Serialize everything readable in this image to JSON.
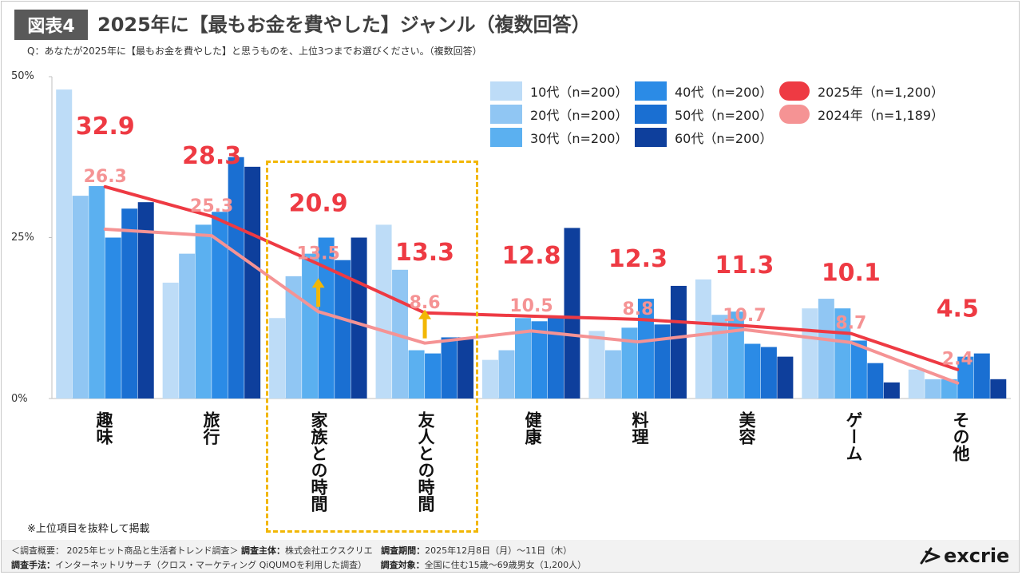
{
  "figure_label": "図表4",
  "title": "2025年に【最もお金を費やした】ジャンル（複数回答）",
  "question": "Q：あなたが2025年に【最もお金を費やした】と思うものを、上位3つまでお選びください。（複数回答）",
  "footnote": "※上位項目を抜粋して掲載",
  "footer": {
    "line1_a": "＜調査概要： 2025年ヒット商品と生活者トレンド調査＞",
    "line1_b_label": "調査主体：",
    "line1_b_value": "株式会社エクスクリエ",
    "line1_c_label": "調査期間：",
    "line1_c_value": "2025年12月8日（月）〜11日（木）",
    "line2_a_label": "調査手法：",
    "line2_a_value": "インターネットリサーチ（クロス・マーケティング QiQUMOを利用した調査）",
    "line2_b_label": "調査対象：",
    "line2_b_value": "全国に住む15歳〜69歳男女（1,200人）"
  },
  "logo_text": "excrie",
  "colors": {
    "age10": "#bddcf7",
    "age20": "#90c6f3",
    "age30": "#5bb0f0",
    "age40": "#2b8be6",
    "age50": "#1a6fd2",
    "age60": "#0e3f9c",
    "y2025": "#ee3a43",
    "y2024": "#f59394",
    "highlight": "#f2b705",
    "arrow": "#f2b705"
  },
  "chart_data": {
    "type": "bar",
    "categories": [
      "趣味",
      "旅行",
      "家族との時間",
      "友人との時間",
      "健康",
      "料理",
      "美容",
      "ゲーム",
      "その他"
    ],
    "ylim": [
      0,
      50
    ],
    "yticks": [
      "50%",
      "25%",
      "0%"
    ],
    "series": [
      {
        "name": "10代（n=200）",
        "type": "bar",
        "values": [
          48,
          18,
          12.5,
          27,
          6,
          10.5,
          18.5,
          14,
          4.5
        ]
      },
      {
        "name": "20代（n=200）",
        "type": "bar",
        "values": [
          31.5,
          22.5,
          19,
          20,
          7.5,
          7.5,
          13,
          15.5,
          3
        ]
      },
      {
        "name": "30代（n=200）",
        "type": "bar",
        "values": [
          33,
          27,
          22.5,
          7.5,
          12.5,
          11,
          13.5,
          14,
          3
        ]
      },
      {
        "name": "40代（n=200）",
        "type": "bar",
        "values": [
          25,
          29,
          25,
          7,
          12,
          15.5,
          8.5,
          9,
          6.5
        ]
      },
      {
        "name": "50代（n=200）",
        "type": "bar",
        "values": [
          29.5,
          37.5,
          21.5,
          9.5,
          12.5,
          11.5,
          8,
          5.5,
          7
        ]
      },
      {
        "name": "60代（n=200）",
        "type": "bar",
        "values": [
          30.5,
          36,
          25,
          9.5,
          26.5,
          17.5,
          6.5,
          2.5,
          3
        ]
      },
      {
        "name": "2025年（n=1,200）",
        "type": "line",
        "values": [
          32.9,
          28.3,
          20.9,
          13.3,
          12.8,
          12.3,
          11.3,
          10.1,
          4.5
        ],
        "labels": [
          "32.9",
          "28.3",
          "20.9",
          "13.3",
          "12.8",
          "12.3",
          "11.3",
          "10.1",
          "4.5"
        ]
      },
      {
        "name": "2024年（n=1,189）",
        "type": "line",
        "values": [
          26.3,
          25.3,
          13.5,
          8.6,
          10.5,
          8.8,
          10.7,
          8.7,
          2.4
        ],
        "labels": [
          "26.3",
          "25.3",
          "13.5",
          "8.6",
          "10.5",
          "8.8",
          "10.7",
          "8.7",
          "2.4"
        ]
      }
    ],
    "highlighted_categories": [
      "家族との時間",
      "友人との時間"
    ],
    "legend_position": "top-right"
  }
}
